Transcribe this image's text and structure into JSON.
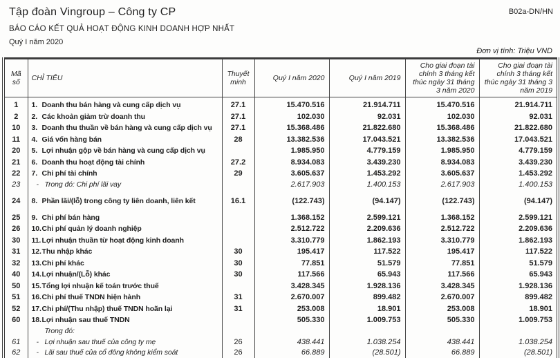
{
  "colors": {
    "ink": "#1f1f1f",
    "paper": "#fdfdfc",
    "rule": "#3c3c3c"
  },
  "header": {
    "company": "Tập đoàn Vingroup – Công ty CP",
    "form_code": "B02a-DN/HN",
    "report_title": "BÁO CÁO KẾT QUẢ HOẠT ĐỘNG KINH DOANH HỢP NHẤT",
    "period": "Quý I năm 2020",
    "unit_note": "Đơn vị tính: Triệu VND"
  },
  "table": {
    "columns": {
      "code": "Mã số",
      "item": "CHỈ TIÊU",
      "note": "Thuyết minh",
      "q1_2020": "Quý I năm 2020",
      "q1_2019": "Quý I năm 2019",
      "ytd_2020": "Cho giai đoạn tài chính 3 tháng kết thúc ngày 31 tháng 3 năm 2020",
      "ytd_2019": "Cho giai đoạn tài chính 3 tháng kết thúc ngày 31 tháng 3 năm 2019"
    },
    "rows": [
      {
        "code": "1",
        "no": "1.",
        "label": "Doanh thu bán hàng và cung cấp dịch vụ",
        "note": "27.1",
        "q1_2020": "15.470.516",
        "q1_2019": "21.914.711",
        "ytd_2020": "15.470.516",
        "ytd_2019": "21.914.711"
      },
      {
        "code": "2",
        "no": "2.",
        "label": "Các khoản giảm trừ doanh thu",
        "note": "27.1",
        "q1_2020": "102.030",
        "q1_2019": "92.031",
        "ytd_2020": "102.030",
        "ytd_2019": "92.031"
      },
      {
        "code": "10",
        "no": "3.",
        "label": "Doanh thu thuần về bán hàng và cung cấp dịch vụ",
        "note": "27.1",
        "q1_2020": "15.368.486",
        "q1_2019": "21.822.680",
        "ytd_2020": "15.368.486",
        "ytd_2019": "21.822.680"
      },
      {
        "code": "11",
        "no": "4.",
        "label": "Giá vốn hàng bán",
        "note": "28",
        "q1_2020": "13.382.536",
        "q1_2019": "17.043.521",
        "ytd_2020": "13.382.536",
        "ytd_2019": "17.043.521"
      },
      {
        "code": "20",
        "no": "5.",
        "label": "Lợi nhuận gộp về bán hàng và cung cấp dịch vụ",
        "note": "",
        "q1_2020": "1.985.950",
        "q1_2019": "4.779.159",
        "ytd_2020": "1.985.950",
        "ytd_2019": "4.779.159"
      },
      {
        "code": "21",
        "no": "6.",
        "label": "Doanh thu hoạt động tài chính",
        "note": "27.2",
        "q1_2020": "8.934.083",
        "q1_2019": "3.439.230",
        "ytd_2020": "8.934.083",
        "ytd_2019": "3.439.230"
      },
      {
        "code": "22",
        "no": "7.",
        "label": "Chi phí tài chính",
        "note": "29",
        "q1_2020": "3.605.637",
        "q1_2019": "1.453.292",
        "ytd_2020": "3.605.637",
        "ytd_2019": "1.453.292"
      },
      {
        "code": "23",
        "no": "-",
        "label": "Trong đó: Chi phí lãi vay",
        "note": "",
        "q1_2020": "2.617.903",
        "q1_2019": "1.400.153",
        "ytd_2020": "2.617.903",
        "ytd_2019": "1.400.153"
      },
      {
        "code": "24",
        "no": "8.",
        "label": "Phần lãi/(lỗ) trong công ty liên doanh, liên kết",
        "note": "16.1",
        "q1_2020": "(122.743)",
        "q1_2019": "(94.147)",
        "ytd_2020": "(122.743)",
        "ytd_2019": "(94.147)"
      },
      {
        "code": "25",
        "no": "9.",
        "label": "Chi phí bán hàng",
        "note": "",
        "q1_2020": "1.368.152",
        "q1_2019": "2.599.121",
        "ytd_2020": "1.368.152",
        "ytd_2019": "2.599.121"
      },
      {
        "code": "26",
        "no": "10.",
        "label": "Chi phí quản lý doanh nghiệp",
        "note": "",
        "q1_2020": "2.512.722",
        "q1_2019": "2.209.636",
        "ytd_2020": "2.512.722",
        "ytd_2019": "2.209.636"
      },
      {
        "code": "30",
        "no": "11.",
        "label": "Lợi nhuận thuần từ hoạt động kinh doanh",
        "note": "",
        "q1_2020": "3.310.779",
        "q1_2019": "1.862.193",
        "ytd_2020": "3.310.779",
        "ytd_2019": "1.862.193"
      },
      {
        "code": "31",
        "no": "12.",
        "label": "Thu nhập khác",
        "note": "30",
        "q1_2020": "195.417",
        "q1_2019": "117.522",
        "ytd_2020": "195.417",
        "ytd_2019": "117.522"
      },
      {
        "code": "32",
        "no": "13.",
        "label": "Chi phí khác",
        "note": "30",
        "q1_2020": "77.851",
        "q1_2019": "51.579",
        "ytd_2020": "77.851",
        "ytd_2019": "51.579"
      },
      {
        "code": "40",
        "no": "14.",
        "label": "Lợi nhuận/(Lỗ) khác",
        "note": "30",
        "q1_2020": "117.566",
        "q1_2019": "65.943",
        "ytd_2020": "117.566",
        "ytd_2019": "65.943"
      },
      {
        "code": "50",
        "no": "15.",
        "label": "Tổng lợi nhuận kế toán trước thuế",
        "note": "",
        "q1_2020": "3.428.345",
        "q1_2019": "1.928.136",
        "ytd_2020": "3.428.345",
        "ytd_2019": "1.928.136"
      },
      {
        "code": "51",
        "no": "16.",
        "label": "Chi phí thuế TNDN hiện hành",
        "note": "31",
        "q1_2020": "2.670.007",
        "q1_2019": "899.482",
        "ytd_2020": "2.670.007",
        "ytd_2019": "899.482"
      },
      {
        "code": "52",
        "no": "17.",
        "label": "Chi phí/(Thu nhập) thuế TNDN hoãn lại",
        "note": "31",
        "q1_2020": "253.008",
        "q1_2019": "18.901",
        "ytd_2020": "253.008",
        "ytd_2019": "18.901"
      },
      {
        "code": "60",
        "no": "18.",
        "label": "Lợi nhuận sau thuế TNDN",
        "note": "",
        "q1_2020": "505.330",
        "q1_2019": "1.009.753",
        "ytd_2020": "505.330",
        "ytd_2019": "1.009.753"
      },
      {
        "code": "",
        "no": "",
        "label": "Trong đó:",
        "note": "",
        "q1_2020": "",
        "q1_2019": "",
        "ytd_2020": "",
        "ytd_2019": ""
      },
      {
        "code": "61",
        "no": "-",
        "label": "Lợi nhuận sau thuế của công ty mẹ",
        "note": "26",
        "q1_2020": "438.441",
        "q1_2019": "1.038.254",
        "ytd_2020": "438.441",
        "ytd_2019": "1.038.254"
      },
      {
        "code": "62",
        "no": "-",
        "label": "Lãi sau thuế của cổ đông không kiểm soát",
        "note": "26",
        "q1_2020": "66.889",
        "q1_2019": "(28.501)",
        "ytd_2020": "66.889",
        "ytd_2019": "(28.501)"
      }
    ]
  }
}
